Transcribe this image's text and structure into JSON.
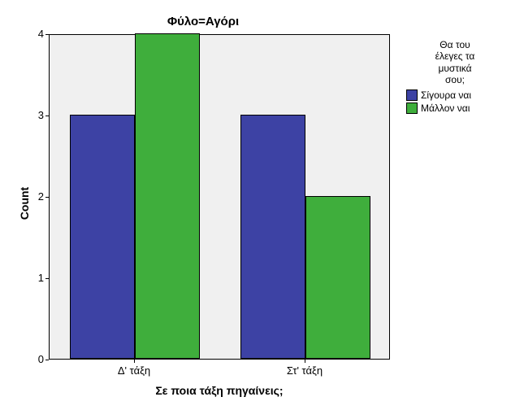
{
  "chart": {
    "type": "bar",
    "title": "Φύλο=Αγόρι",
    "title_fontsize": 15,
    "background_color": "#ffffff",
    "plot_background_color": "#f0f0f0",
    "border_color": "#000000",
    "ylabel": "Count",
    "xlabel": "Σε ποια τάξη πηγαίνεις;",
    "axis_label_fontsize": 14,
    "tick_fontsize": 13,
    "ylim": [
      0,
      4
    ],
    "ytick_step": 1,
    "y_ticks": [
      0,
      1,
      2,
      3,
      4
    ],
    "categories": [
      "Δ' τάξη",
      "Στ' τάξη"
    ],
    "series": [
      {
        "name": "Σίγουρα ναι",
        "color": "#3d42a4",
        "values": [
          3,
          3
        ]
      },
      {
        "name": "Μάλλον ναι",
        "color": "#3fae3c",
        "values": [
          4,
          2
        ]
      }
    ],
    "bar_border_color": "#000000",
    "legend": {
      "title": "Θα του\nέλεγες τα\nμυστικά\nσου;",
      "fontsize": 12
    }
  }
}
